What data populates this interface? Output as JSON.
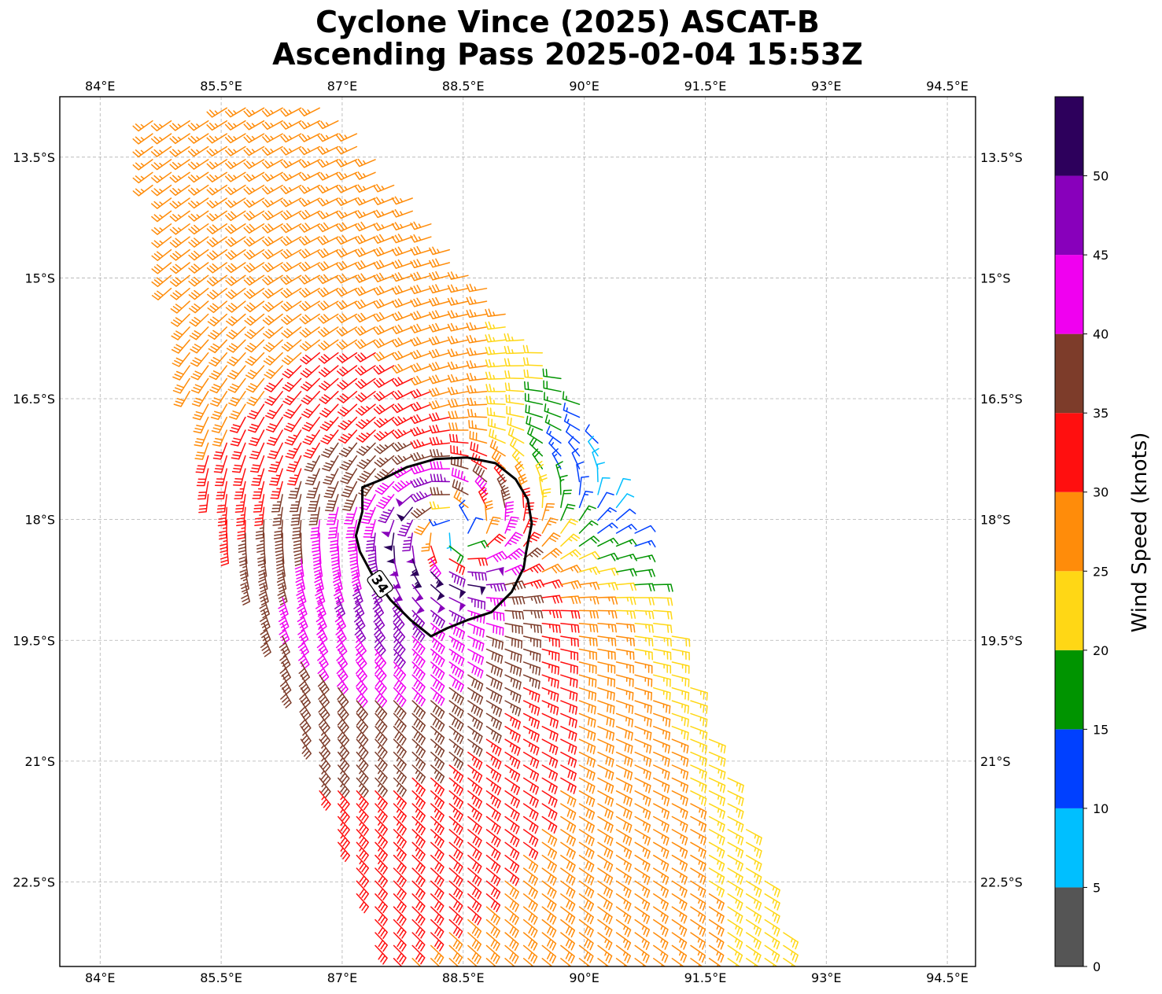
{
  "title": {
    "line1": "Cyclone Vince (2025) ASCAT-B",
    "line2": "Ascending Pass 2025-02-04 15:53Z"
  },
  "map": {
    "lon_range": [
      83.5,
      94.85
    ],
    "lat_range": [
      -23.55,
      -12.75
    ],
    "lon_ticks": [
      {
        "value": 84.0,
        "label": "84°E"
      },
      {
        "value": 85.5,
        "label": "85.5°E"
      },
      {
        "value": 87.0,
        "label": "87°E"
      },
      {
        "value": 88.5,
        "label": "88.5°E"
      },
      {
        "value": 90.0,
        "label": "90°E"
      },
      {
        "value": 91.5,
        "label": "91.5°E"
      },
      {
        "value": 93.0,
        "label": "93°E"
      },
      {
        "value": 94.5,
        "label": "94.5°E"
      }
    ],
    "lat_ticks": [
      {
        "value": -13.5,
        "label": "13.5°S"
      },
      {
        "value": -15.0,
        "label": "15°S"
      },
      {
        "value": -16.5,
        "label": "16.5°S"
      },
      {
        "value": -18.0,
        "label": "18°S"
      },
      {
        "value": -19.5,
        "label": "19.5°S"
      },
      {
        "value": -21.0,
        "label": "21°S"
      },
      {
        "value": -22.5,
        "label": "22.5°S"
      }
    ],
    "gridlines": true,
    "storm_center": {
      "lon": 88.4,
      "lat": -18.15
    },
    "swath_corners": [
      [
        84.5,
        -13.0
      ],
      [
        86.8,
        -12.75
      ],
      [
        90.0,
        -16.5
      ],
      [
        92.7,
        -23.6
      ],
      [
        87.5,
        -23.6
      ],
      [
        85.3,
        -17.6
      ]
    ],
    "contour": {
      "label": "34",
      "points": [
        [
          87.25,
          -17.6
        ],
        [
          87.5,
          -17.5
        ],
        [
          87.8,
          -17.35
        ],
        [
          88.15,
          -17.25
        ],
        [
          88.55,
          -17.23
        ],
        [
          88.9,
          -17.3
        ],
        [
          89.15,
          -17.5
        ],
        [
          89.3,
          -17.75
        ],
        [
          89.35,
          -18.05
        ],
        [
          89.28,
          -18.4
        ],
        [
          89.25,
          -18.6
        ],
        [
          89.1,
          -18.9
        ],
        [
          88.85,
          -19.15
        ],
        [
          88.55,
          -19.25
        ],
        [
          88.3,
          -19.35
        ],
        [
          88.1,
          -19.45
        ],
        [
          87.85,
          -19.25
        ],
        [
          87.6,
          -19.0
        ],
        [
          87.38,
          -18.7
        ],
        [
          87.22,
          -18.4
        ],
        [
          87.17,
          -18.2
        ],
        [
          87.25,
          -17.9
        ]
      ],
      "label_position": {
        "lon": 87.47,
        "lat": -18.8
      }
    }
  },
  "colorbar": {
    "label": "Wind Speed (knots)",
    "bins": [
      {
        "from": 0,
        "to": 5,
        "color": "#555555"
      },
      {
        "from": 5,
        "to": 10,
        "color": "#00bfff"
      },
      {
        "from": 10,
        "to": 15,
        "color": "#0040ff"
      },
      {
        "from": 15,
        "to": 20,
        "color": "#009400"
      },
      {
        "from": 20,
        "to": 25,
        "color": "#ffd715"
      },
      {
        "from": 25,
        "to": 30,
        "color": "#ff8c0a"
      },
      {
        "from": 30,
        "to": 35,
        "color": "#ff0f0f"
      },
      {
        "from": 35,
        "to": 40,
        "color": "#7d3c2a"
      },
      {
        "from": 40,
        "to": 45,
        "color": "#f000f0"
      },
      {
        "from": 45,
        "to": 50,
        "color": "#8800bb"
      },
      {
        "from": 50,
        "to": 55,
        "color": "#2d005c"
      }
    ],
    "ticks": [
      "0",
      "5",
      "10",
      "15",
      "20",
      "25",
      "30",
      "35",
      "40",
      "45",
      "50"
    ]
  },
  "wind_field": {
    "grid_step_lon": 0.23,
    "grid_step_lat": 0.16,
    "background_north": {
      "speed_kt": 17,
      "from_dir_deg": 225
    },
    "background_south": {
      "speed_kt": 22,
      "from_dir_deg": 150
    },
    "vortex_max_kt": 48,
    "radius_max_wind_deg": 0.6
  }
}
